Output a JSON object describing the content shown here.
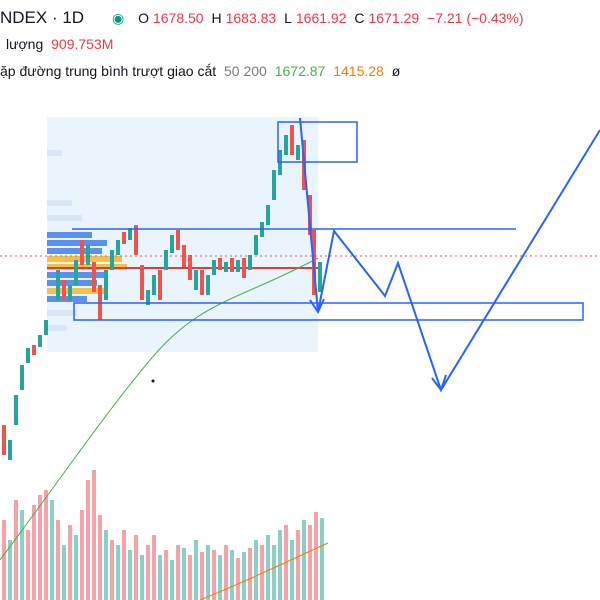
{
  "header": {
    "symbol": "NDEX · 1D",
    "ohlc": [
      {
        "label": "O",
        "value": "1678.50"
      },
      {
        "label": "H",
        "value": "1683.83"
      },
      {
        "label": "L",
        "value": "1661.92"
      },
      {
        "label": "C",
        "value": "1671.29"
      }
    ],
    "change": "−7.21 (−0.43%)"
  },
  "volume": {
    "label": "lượng",
    "value": "909.753M"
  },
  "indicator": {
    "name": "ặp đường trung bình trượt giao cắt",
    "params": "50 200",
    "values": [
      "1672.87",
      "1415.28"
    ],
    "icon": "ø"
  }
}
